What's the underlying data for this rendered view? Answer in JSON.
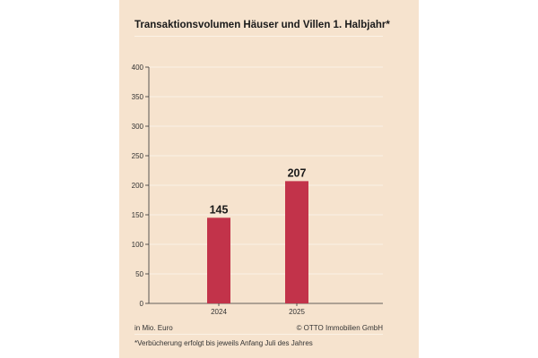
{
  "chart_data": {
    "type": "bar",
    "title": "Transaktionsvolumen Häuser und Villen 1. Halbjahr*",
    "categories": [
      "2024",
      "2025"
    ],
    "values": [
      145,
      207
    ],
    "value_labels": [
      "145",
      "207"
    ],
    "ylim": [
      0,
      400
    ],
    "yticks": [
      0,
      50,
      100,
      150,
      200,
      250,
      300,
      350,
      400
    ],
    "grid": true,
    "legend": "none",
    "unit_note": "in Mio. Euro",
    "source": "© OTTO Immobilien GmbH",
    "footnote": "*Verbücherung erfolgt bis jeweils Anfang Juli des Jahres",
    "colors": {
      "bar": "#c2334a",
      "background": "#f6e3ce",
      "grid": "#fbf2e6",
      "axis": "#333333"
    }
  }
}
